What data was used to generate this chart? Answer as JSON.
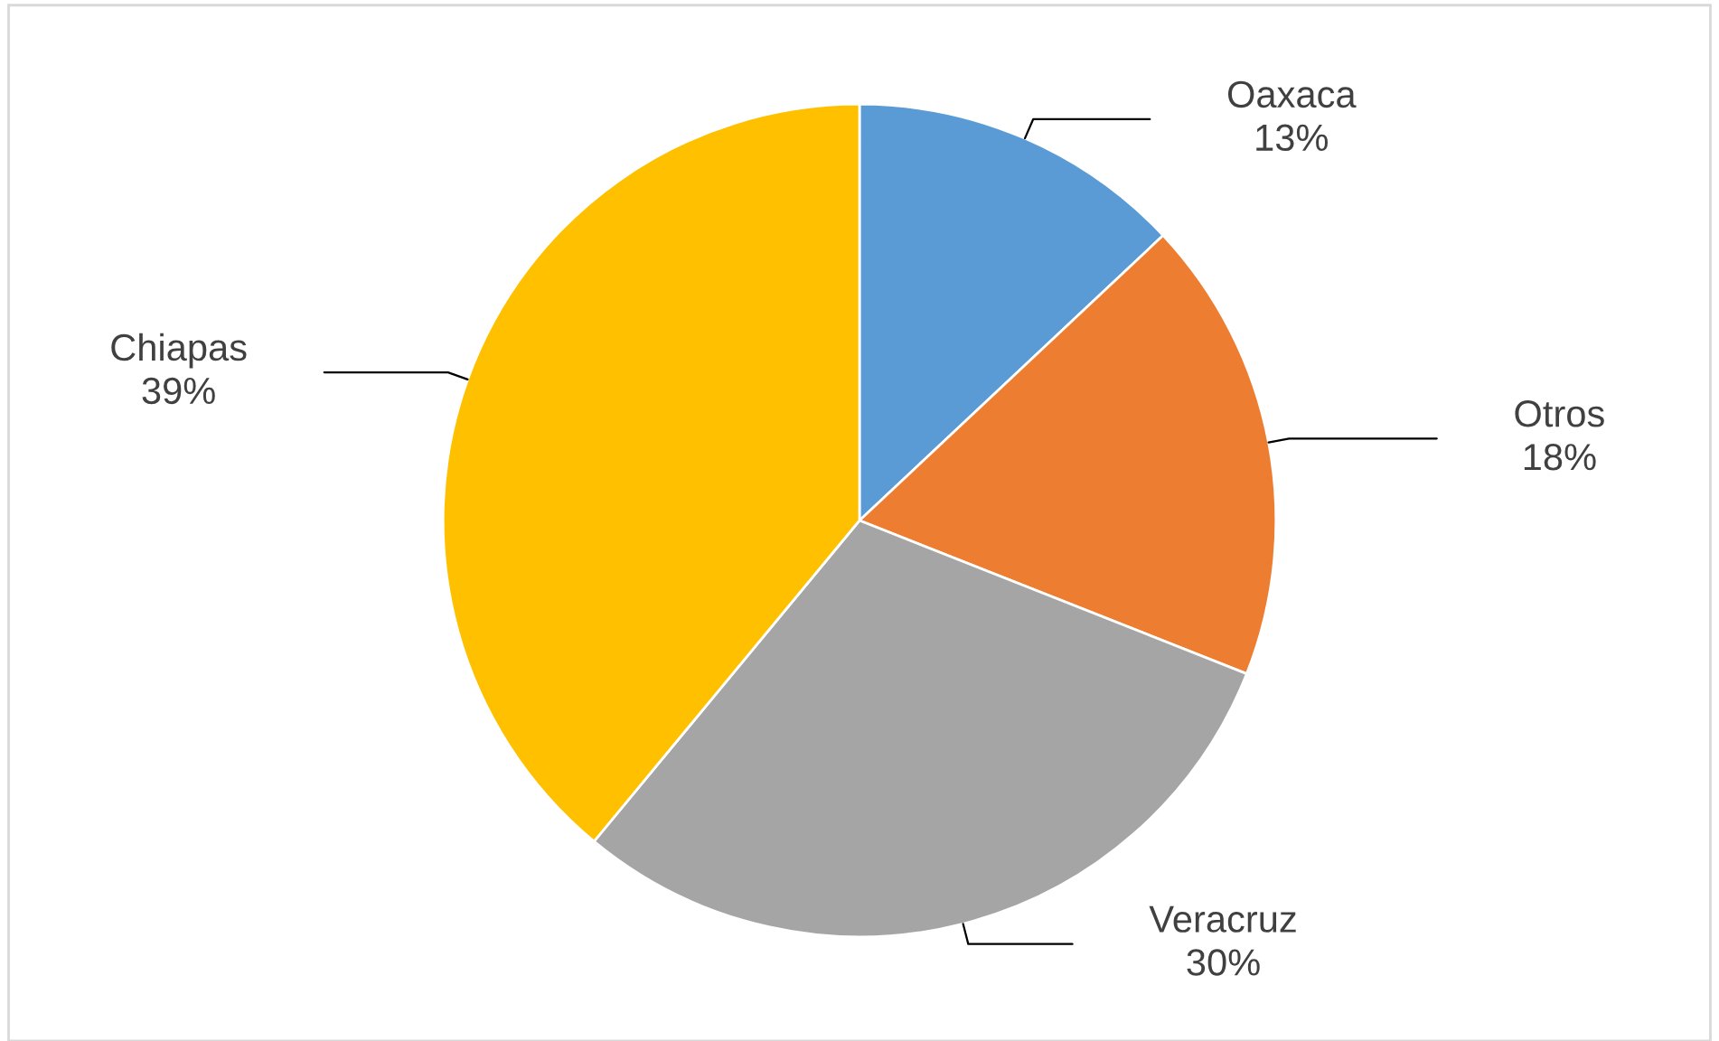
{
  "chart_data": {
    "type": "pie",
    "categories": [
      "Oaxaca",
      "Otros",
      "Veracruz",
      "Chiapas"
    ],
    "values": [
      13,
      18,
      30,
      39
    ],
    "value_labels": [
      "13%",
      "18%",
      "30%",
      "39%"
    ],
    "colors": [
      "#5b9bd5",
      "#ed7d31",
      "#a5a5a5",
      "#ffc000"
    ],
    "legend": false
  }
}
